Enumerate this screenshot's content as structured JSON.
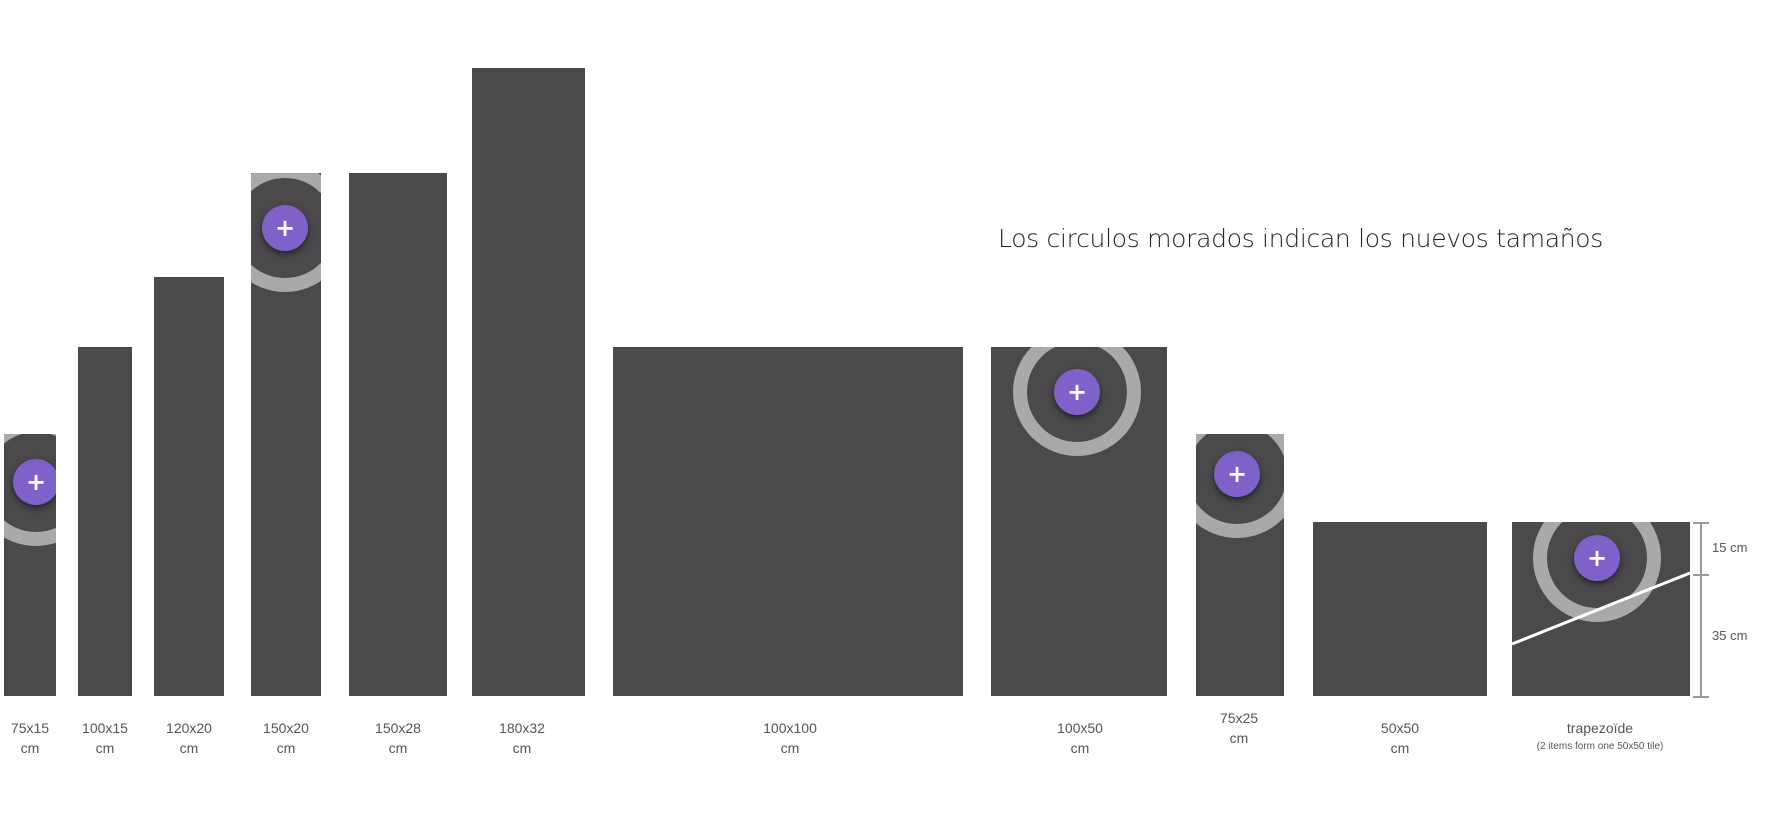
{
  "note": "Los circulos morados indican los nuevos tamaños",
  "colors": {
    "tile": "#4b494c",
    "ring": "#a9a9ab",
    "marker": "#7e62c9",
    "background": "#ffffff"
  },
  "marker_icon": "plus-icon",
  "marker_symbol": "+",
  "tiles": [
    {
      "id": "75x15",
      "label1": "75x15",
      "label2": "cm",
      "is_new": true
    },
    {
      "id": "100x15",
      "label1": "100x15",
      "label2": "cm",
      "is_new": false
    },
    {
      "id": "120x20",
      "label1": "120x20",
      "label2": "cm",
      "is_new": false
    },
    {
      "id": "150x20",
      "label1": "150x20",
      "label2": "cm",
      "is_new": true
    },
    {
      "id": "150x28",
      "label1": "150x28",
      "label2": "cm",
      "is_new": false
    },
    {
      "id": "180x32",
      "label1": "180x32",
      "label2": "cm",
      "is_new": false
    },
    {
      "id": "100x100",
      "label1": "100x100",
      "label2": "cm",
      "is_new": false
    },
    {
      "id": "100x50",
      "label1": "100x50",
      "label2": "cm",
      "is_new": true
    },
    {
      "id": "75x25",
      "label1": "75x25",
      "label2": "cm",
      "is_new": true
    },
    {
      "id": "50x50",
      "label1": "50x50",
      "label2": "cm",
      "is_new": false
    },
    {
      "id": "trapezoide",
      "label1": "trapezoïde",
      "label2": "(2 items form one 50x50 tile)",
      "is_new": true
    }
  ],
  "dimensions": {
    "top": "15 cm",
    "bottom": "35 cm"
  }
}
